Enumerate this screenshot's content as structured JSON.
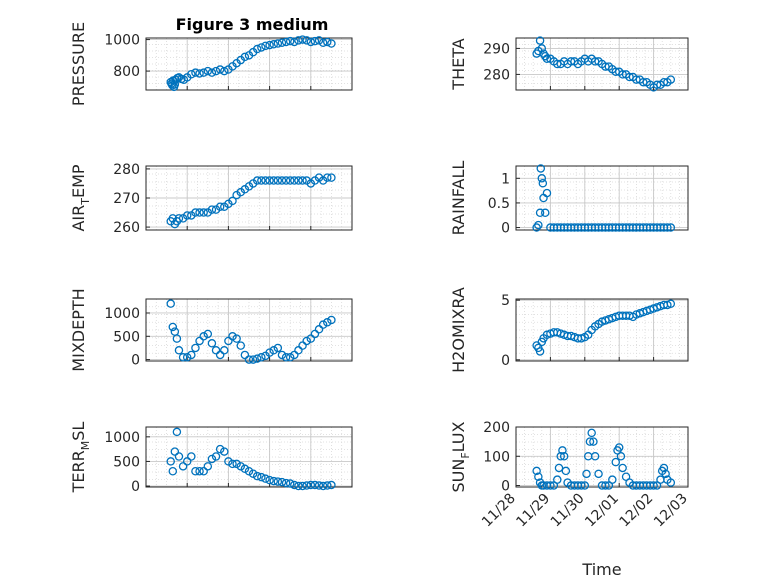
{
  "figure": {
    "title": "Figure 3 medium"
  },
  "colors": {
    "series": "#0072BD",
    "grid": "#d9d9d9",
    "axis": "#262626"
  },
  "chart_data": [
    {
      "type": "scatter",
      "ylabel": "PRESSURE",
      "ylabel_main": "PRESSURE",
      "ylabel_sub": "",
      "ylabel_tail": "",
      "xlim": [
        0,
        5
      ],
      "ylim": [
        680,
        1010
      ],
      "yticks": [
        800,
        1000
      ],
      "xticks": [],
      "x": [
        0.6,
        0.62,
        0.64,
        0.66,
        0.68,
        0.7,
        0.72,
        0.76,
        0.8,
        0.86,
        0.92,
        1.0,
        1.1,
        1.2,
        1.3,
        1.4,
        1.5,
        1.6,
        1.7,
        1.8,
        1.9,
        2.0,
        2.1,
        2.2,
        2.3,
        2.4,
        2.5,
        2.6,
        2.7,
        2.8,
        2.9,
        3.0,
        3.1,
        3.2,
        3.3,
        3.4,
        3.5,
        3.6,
        3.7,
        3.8,
        3.9,
        4.0,
        4.1,
        4.2,
        4.3,
        4.4,
        4.5
      ],
      "y": [
        730,
        720,
        710,
        740,
        700,
        715,
        745,
        755,
        760,
        750,
        745,
        760,
        780,
        790,
        785,
        790,
        800,
        790,
        800,
        810,
        800,
        810,
        830,
        850,
        870,
        890,
        900,
        920,
        940,
        950,
        960,
        965,
        970,
        975,
        980,
        985,
        990,
        985,
        995,
        1000,
        995,
        985,
        990,
        995,
        980,
        985,
        975
      ]
    },
    {
      "type": "scatter",
      "ylabel": "THETA",
      "ylabel_main": "THETA",
      "ylabel_sub": "",
      "ylabel_tail": "",
      "xlim": [
        0,
        5
      ],
      "ylim": [
        274,
        294
      ],
      "yticks": [
        280,
        290
      ],
      "xticks": [],
      "x": [
        0.6,
        0.65,
        0.7,
        0.75,
        0.8,
        0.85,
        0.9,
        1.0,
        1.1,
        1.2,
        1.3,
        1.4,
        1.5,
        1.6,
        1.7,
        1.8,
        1.9,
        2.0,
        2.1,
        2.2,
        2.3,
        2.4,
        2.5,
        2.6,
        2.7,
        2.8,
        2.9,
        3.0,
        3.1,
        3.2,
        3.3,
        3.4,
        3.5,
        3.6,
        3.7,
        3.8,
        3.9,
        4.0,
        4.1,
        4.2,
        4.3,
        4.4,
        4.5
      ],
      "y": [
        288,
        289,
        293,
        290,
        288,
        287,
        286,
        286,
        285,
        284,
        284,
        285,
        284,
        285,
        285,
        284,
        285,
        286,
        285,
        286,
        285,
        285,
        284,
        283,
        283,
        282,
        281,
        281,
        280,
        280,
        279,
        279,
        278,
        278,
        277,
        277,
        276,
        275,
        276,
        276,
        277,
        277,
        278
      ]
    },
    {
      "type": "scatter",
      "ylabel": "AIR_TEMP",
      "ylabel_main": "AIR",
      "ylabel_sub": "T",
      "ylabel_tail": "EMP",
      "xlim": [
        0,
        5
      ],
      "ylim": [
        259,
        281
      ],
      "yticks": [
        260,
        270,
        280
      ],
      "xticks": [],
      "x": [
        0.6,
        0.65,
        0.7,
        0.75,
        0.8,
        0.9,
        1.0,
        1.1,
        1.2,
        1.3,
        1.4,
        1.5,
        1.6,
        1.7,
        1.8,
        1.9,
        2.0,
        2.1,
        2.2,
        2.3,
        2.4,
        2.5,
        2.6,
        2.7,
        2.8,
        2.9,
        3.0,
        3.1,
        3.2,
        3.3,
        3.4,
        3.5,
        3.6,
        3.7,
        3.8,
        3.9,
        4.0,
        4.1,
        4.2,
        4.3,
        4.4,
        4.5
      ],
      "y": [
        262,
        263,
        261,
        262,
        263,
        263,
        264,
        264,
        265,
        265,
        265,
        265,
        266,
        266,
        267,
        267,
        268,
        269,
        271,
        272,
        273,
        274,
        275,
        276,
        276,
        276,
        276,
        276,
        276,
        276,
        276,
        276,
        276,
        276,
        276,
        276,
        275,
        276,
        277,
        276,
        277,
        277
      ]
    },
    {
      "type": "scatter",
      "ylabel": "RAINFALL",
      "ylabel_main": "RAINFALL",
      "ylabel_sub": "",
      "ylabel_tail": "",
      "xlim": [
        0,
        5
      ],
      "ylim": [
        -0.05,
        1.25
      ],
      "yticks": [
        0,
        0.5,
        1
      ],
      "xticks": [],
      "x": [
        0.6,
        0.65,
        0.7,
        0.72,
        0.75,
        0.78,
        0.8,
        0.85,
        0.9,
        1.0,
        1.1,
        1.2,
        1.3,
        1.4,
        1.5,
        1.6,
        1.7,
        1.8,
        1.9,
        2.0,
        2.1,
        2.2,
        2.3,
        2.4,
        2.5,
        2.6,
        2.7,
        2.8,
        2.9,
        3.0,
        3.1,
        3.2,
        3.3,
        3.4,
        3.5,
        3.6,
        3.7,
        3.8,
        3.9,
        4.0,
        4.1,
        4.2,
        4.3,
        4.4,
        4.5
      ],
      "y": [
        0.0,
        0.05,
        0.3,
        1.2,
        1.0,
        0.9,
        0.6,
        0.3,
        0.7,
        0,
        0,
        0,
        0,
        0,
        0,
        0,
        0,
        0,
        0,
        0,
        0,
        0,
        0,
        0,
        0,
        0,
        0,
        0,
        0,
        0,
        0,
        0,
        0,
        0,
        0,
        0,
        0,
        0,
        0,
        0,
        0,
        0,
        0,
        0,
        0
      ]
    },
    {
      "type": "scatter",
      "ylabel": "MIXDEPTH",
      "ylabel_main": "MIXDEPTH",
      "ylabel_sub": "",
      "ylabel_tail": "",
      "xlim": [
        0,
        5
      ],
      "ylim": [
        -30,
        1300
      ],
      "yticks": [
        0,
        500,
        1000
      ],
      "xticks": [],
      "x": [
        0.6,
        0.65,
        0.7,
        0.75,
        0.8,
        0.9,
        1.0,
        1.1,
        1.2,
        1.3,
        1.4,
        1.5,
        1.6,
        1.7,
        1.8,
        1.9,
        2.0,
        2.1,
        2.2,
        2.3,
        2.4,
        2.5,
        2.6,
        2.7,
        2.8,
        2.9,
        3.0,
        3.1,
        3.2,
        3.3,
        3.4,
        3.5,
        3.6,
        3.7,
        3.8,
        3.9,
        4.0,
        4.1,
        4.2,
        4.3,
        4.4,
        4.5
      ],
      "y": [
        1200,
        700,
        600,
        450,
        200,
        50,
        50,
        100,
        250,
        400,
        500,
        550,
        350,
        200,
        100,
        200,
        400,
        500,
        450,
        300,
        100,
        0,
        0,
        20,
        50,
        80,
        150,
        200,
        250,
        100,
        50,
        50,
        100,
        200,
        300,
        400,
        450,
        550,
        650,
        750,
        800,
        850
      ]
    },
    {
      "type": "scatter",
      "ylabel": "H2OMIXRA",
      "ylabel_main": "H2OMIXRA",
      "ylabel_sub": "",
      "ylabel_tail": "",
      "xlim": [
        0,
        5
      ],
      "ylim": [
        -0.1,
        5.1
      ],
      "yticks": [
        0,
        5
      ],
      "xticks": [],
      "x": [
        0.6,
        0.65,
        0.7,
        0.75,
        0.8,
        0.9,
        1.0,
        1.1,
        1.2,
        1.3,
        1.4,
        1.5,
        1.6,
        1.7,
        1.8,
        1.9,
        2.0,
        2.1,
        2.2,
        2.3,
        2.4,
        2.5,
        2.6,
        2.7,
        2.8,
        2.9,
        3.0,
        3.1,
        3.2,
        3.3,
        3.4,
        3.5,
        3.6,
        3.7,
        3.8,
        3.9,
        4.0,
        4.1,
        4.2,
        4.3,
        4.4,
        4.5
      ],
      "y": [
        1.2,
        1.0,
        0.7,
        1.5,
        1.8,
        2.1,
        2.2,
        2.3,
        2.3,
        2.2,
        2.1,
        2.0,
        2.0,
        1.9,
        1.8,
        1.8,
        1.9,
        2.1,
        2.5,
        2.8,
        3.0,
        3.2,
        3.3,
        3.4,
        3.5,
        3.6,
        3.7,
        3.7,
        3.7,
        3.7,
        3.6,
        3.8,
        3.9,
        4.0,
        4.1,
        4.2,
        4.3,
        4.4,
        4.5,
        4.6,
        4.6,
        4.7
      ]
    },
    {
      "type": "scatter",
      "ylabel": "TERR_MSL",
      "ylabel_main": "TERR",
      "ylabel_sub": "M",
      "ylabel_tail": "SL",
      "xlim": [
        0,
        5
      ],
      "ylim": [
        -20,
        1200
      ],
      "yticks": [
        0,
        500,
        1000
      ],
      "xticks": [],
      "x": [
        0.6,
        0.65,
        0.7,
        0.75,
        0.8,
        0.9,
        1.0,
        1.1,
        1.2,
        1.3,
        1.4,
        1.5,
        1.6,
        1.7,
        1.8,
        1.9,
        2.0,
        2.1,
        2.2,
        2.3,
        2.4,
        2.5,
        2.6,
        2.7,
        2.8,
        2.9,
        3.0,
        3.1,
        3.2,
        3.3,
        3.4,
        3.5,
        3.6,
        3.7,
        3.8,
        3.9,
        4.0,
        4.1,
        4.2,
        4.3,
        4.4,
        4.5
      ],
      "y": [
        500,
        300,
        700,
        1100,
        600,
        400,
        500,
        600,
        300,
        300,
        300,
        400,
        550,
        600,
        750,
        700,
        500,
        450,
        450,
        400,
        350,
        300,
        250,
        200,
        180,
        150,
        120,
        100,
        90,
        80,
        60,
        50,
        20,
        0,
        0,
        10,
        20,
        20,
        10,
        0,
        10,
        20
      ]
    },
    {
      "type": "scatter",
      "ylabel": "SUN_FLUX",
      "ylabel_main": "SUN",
      "ylabel_sub": "F",
      "ylabel_tail": "LUX",
      "xlim": [
        0,
        5
      ],
      "ylim": [
        -5,
        200
      ],
      "yticks": [
        0,
        100,
        200
      ],
      "xticks": [
        0,
        1,
        2,
        3,
        4,
        5
      ],
      "xticklabels": [
        "11/28",
        "11/29",
        "11/30",
        "12/01",
        "12/02",
        "12/03"
      ],
      "xlabel": "Time",
      "x": [
        0.6,
        0.65,
        0.7,
        0.75,
        0.8,
        0.9,
        1.0,
        1.1,
        1.2,
        1.25,
        1.3,
        1.35,
        1.4,
        1.45,
        1.5,
        1.6,
        1.7,
        1.8,
        1.9,
        2.0,
        2.05,
        2.1,
        2.15,
        2.2,
        2.25,
        2.3,
        2.4,
        2.5,
        2.6,
        2.7,
        2.8,
        2.9,
        2.95,
        3.0,
        3.05,
        3.1,
        3.2,
        3.3,
        3.4,
        3.5,
        3.6,
        3.7,
        3.8,
        3.9,
        4.0,
        4.1,
        4.2,
        4.25,
        4.3,
        4.35,
        4.4,
        4.5
      ],
      "y": [
        50,
        30,
        10,
        0,
        0,
        0,
        0,
        0,
        20,
        60,
        100,
        120,
        100,
        50,
        10,
        0,
        0,
        0,
        0,
        0,
        40,
        100,
        150,
        180,
        150,
        100,
        40,
        0,
        0,
        0,
        20,
        80,
        120,
        130,
        100,
        60,
        30,
        10,
        0,
        0,
        0,
        0,
        0,
        0,
        0,
        0,
        20,
        50,
        60,
        40,
        20,
        10
      ]
    },
    {
      "type": "scatter",
      "ylabel": "",
      "xlim": [
        0,
        5
      ],
      "ylim": [
        0,
        1
      ],
      "yticks": [],
      "xticks": [
        0,
        1,
        2,
        3,
        4,
        5
      ],
      "xticklabels": [
        "11/28",
        "11/29",
        "11/30",
        "12/01",
        "12/02",
        "12/03"
      ],
      "xlabel": "Time",
      "x": [],
      "y": []
    }
  ]
}
